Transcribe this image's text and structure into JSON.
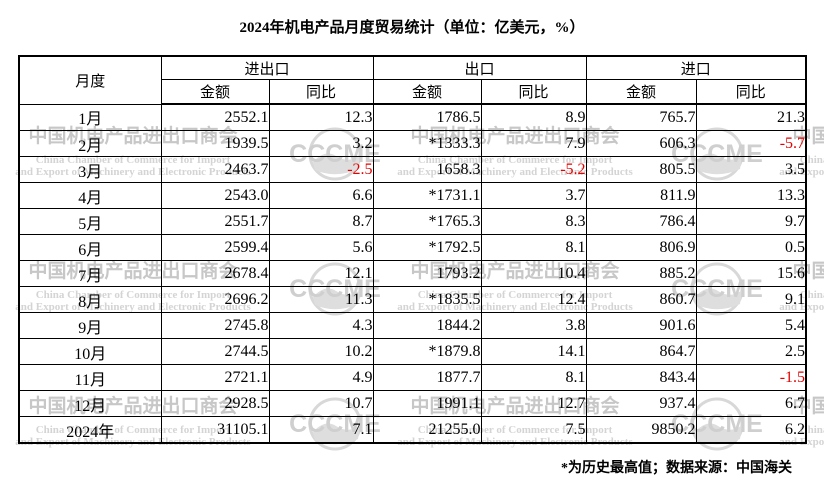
{
  "title": "2024年机电产品月度贸易统计（单位：亿美元，%）",
  "footer_note": "*为历史最高值；数据来源：中国海关",
  "colors": {
    "text": "#000000",
    "negative": "#e60000",
    "watermark_cn": "#c7c7c7",
    "watermark_en": "#d4d4d4"
  },
  "watermark": {
    "cn": "中国机电产品进出口商会",
    "en_line1": "China Chamber of Commerce for Import",
    "en_line2": "and Export of Machinery and Electronic Products",
    "logo_text": "CCCME"
  },
  "table": {
    "month_header": "月度",
    "groups": [
      {
        "label": "进出口"
      },
      {
        "label": "出口"
      },
      {
        "label": "进口"
      }
    ],
    "sub_headers": [
      "金额",
      "同比"
    ],
    "rows": [
      [
        "1月",
        "2552.1",
        "12.3",
        "1786.5",
        "8.9",
        "765.7",
        "21.3"
      ],
      [
        "2月",
        "1939.5",
        "3.2",
        "*1333.3",
        "7.9",
        "606.3",
        "-5.7"
      ],
      [
        "3月",
        "2463.7",
        "-2.5",
        "1658.3",
        "-5.2",
        "805.5",
        "3.5"
      ],
      [
        "4月",
        "2543.0",
        "6.6",
        "*1731.1",
        "3.7",
        "811.9",
        "13.3"
      ],
      [
        "5月",
        "2551.7",
        "8.7",
        "*1765.3",
        "8.3",
        "786.4",
        "9.7"
      ],
      [
        "6月",
        "2599.4",
        "5.6",
        "*1792.5",
        "8.1",
        "806.9",
        "0.5"
      ],
      [
        "7月",
        "2678.4",
        "12.1",
        "1793.2",
        "10.4",
        "885.2",
        "15.6"
      ],
      [
        "8月",
        "2696.2",
        "11.3",
        "*1835.5",
        "12.4",
        "860.7",
        "9.1"
      ],
      [
        "9月",
        "2745.8",
        "4.3",
        "1844.2",
        "3.8",
        "901.6",
        "5.4"
      ],
      [
        "10月",
        "2744.5",
        "10.2",
        "*1879.8",
        "14.1",
        "864.7",
        "2.5"
      ],
      [
        "11月",
        "2721.1",
        "4.9",
        "1877.7",
        "8.1",
        "843.4",
        "-1.5"
      ],
      [
        "12月",
        "2928.5",
        "10.7",
        "1991.1",
        "12.7",
        "937.4",
        "6.7"
      ],
      [
        "2024年",
        "31105.1",
        "7.1",
        "21255.0",
        "7.5",
        "9850.2",
        "6.2"
      ]
    ]
  }
}
